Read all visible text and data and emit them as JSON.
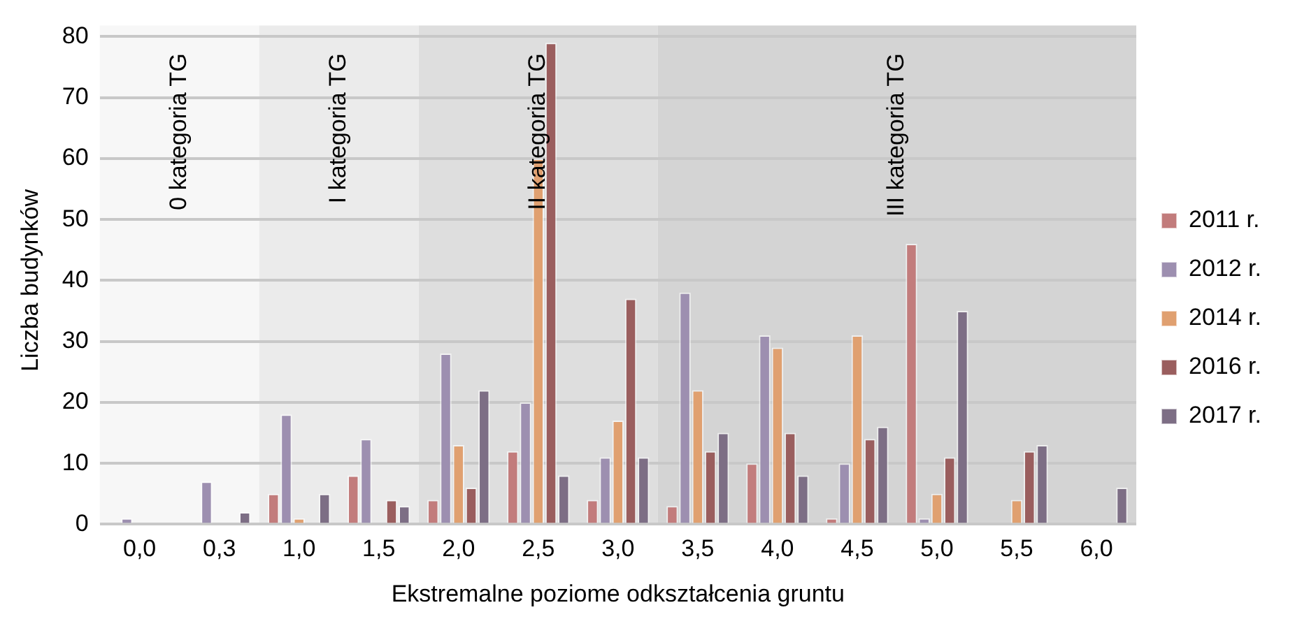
{
  "chart_data": {
    "type": "bar",
    "xlabel": "Ekstremalne poziome odkształcenia gruntu",
    "ylabel": "Liczba budynków",
    "categories": [
      "0,0",
      "0,3",
      "1,0",
      "1,5",
      "2,0",
      "2,5",
      "3,0",
      "3,5",
      "4,0",
      "4,5",
      "5,0",
      "5,5",
      "6,0"
    ],
    "series": [
      {
        "name": "2011 r.",
        "color": "#c27c7c",
        "values": [
          0,
          0,
          5,
          8,
          4,
          12,
          4,
          3,
          10,
          1,
          46,
          0,
          0
        ]
      },
      {
        "name": "2012 r.",
        "color": "#9d8fb0",
        "values": [
          1,
          7,
          18,
          14,
          28,
          20,
          11,
          38,
          31,
          10,
          1,
          0,
          0
        ]
      },
      {
        "name": "2014 r.",
        "color": "#e0a070",
        "values": [
          0,
          0,
          1,
          0,
          13,
          60,
          17,
          22,
          29,
          31,
          5,
          4,
          0
        ]
      },
      {
        "name": "2016 r.",
        "color": "#9a5e5e",
        "values": [
          0,
          0,
          0,
          4,
          6,
          79,
          37,
          12,
          15,
          14,
          11,
          12,
          0
        ]
      },
      {
        "name": "2017 r.",
        "color": "#7d6e85",
        "values": [
          0,
          2,
          5,
          3,
          22,
          8,
          11,
          15,
          8,
          16,
          35,
          13,
          6
        ]
      }
    ],
    "ylim": [
      0,
      80
    ],
    "yticks": [
      0,
      10,
      20,
      30,
      40,
      50,
      60,
      70,
      80
    ],
    "grid": "y",
    "legend": "right",
    "bands": [
      {
        "axis": "x",
        "from": "0,0",
        "to": "0,3",
        "label": "0 kategoria TG",
        "color": "#f7f7f7"
      },
      {
        "axis": "x",
        "from": "1,0",
        "to": "1,5",
        "label": "I kategoria TG",
        "color": "#ebebeb"
      },
      {
        "axis": "x",
        "from": "2,0",
        "to": "3,0",
        "label": "II kategoria TG",
        "color": "#dedede"
      },
      {
        "axis": "x",
        "from": "3,5",
        "to": "6,0",
        "label": "III kategoria TG",
        "color": "#d4d4d4"
      }
    ]
  }
}
